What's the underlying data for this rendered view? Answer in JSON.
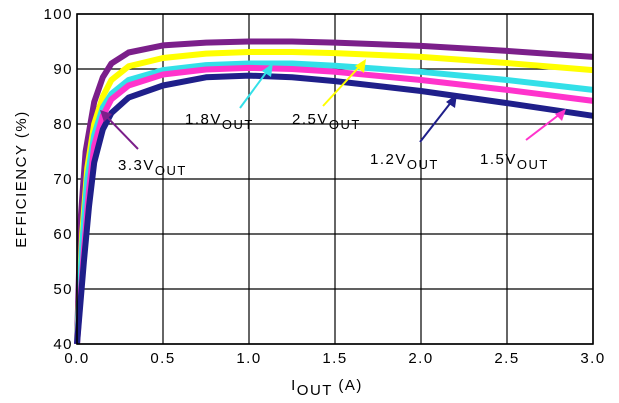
{
  "chart_data": {
    "type": "line",
    "xlabel": {
      "main": "I",
      "sub": "OUT",
      "unit": " (A)"
    },
    "ylabel": "EFFICIENCY (%)",
    "xlim": [
      0,
      3.0
    ],
    "ylim": [
      40,
      100
    ],
    "xticks": [
      "0.0",
      "0.5",
      "1.0",
      "1.5",
      "2.0",
      "2.5",
      "3.0"
    ],
    "yticks": [
      "40",
      "50",
      "60",
      "70",
      "80",
      "90",
      "100"
    ],
    "grid": true,
    "series": [
      {
        "name": "3.3VOUT",
        "label_main": "3.3V",
        "label_sub": "OUT",
        "color": "#7b1f8a",
        "points": [
          [
            0.0,
            40
          ],
          [
            0.02,
            62
          ],
          [
            0.05,
            75
          ],
          [
            0.1,
            84
          ],
          [
            0.15,
            88.5
          ],
          [
            0.2,
            91
          ],
          [
            0.3,
            93
          ],
          [
            0.5,
            94.3
          ],
          [
            0.75,
            94.8
          ],
          [
            1.0,
            95
          ],
          [
            1.25,
            95
          ],
          [
            1.5,
            94.8
          ],
          [
            2.0,
            94.2
          ],
          [
            2.5,
            93.3
          ],
          [
            3.0,
            92.2
          ]
        ]
      },
      {
        "name": "2.5VOUT",
        "label_main": "2.5V",
        "label_sub": "OUT",
        "color": "#ffff00",
        "points": [
          [
            0.0,
            40
          ],
          [
            0.03,
            60
          ],
          [
            0.06,
            72
          ],
          [
            0.1,
            80
          ],
          [
            0.15,
            85
          ],
          [
            0.2,
            88
          ],
          [
            0.3,
            90.5
          ],
          [
            0.5,
            92
          ],
          [
            0.75,
            92.8
          ],
          [
            1.0,
            93.1
          ],
          [
            1.25,
            93.1
          ],
          [
            1.5,
            92.9
          ],
          [
            2.0,
            92.2
          ],
          [
            2.5,
            91.1
          ],
          [
            3.0,
            89.8
          ]
        ]
      },
      {
        "name": "1.8VOUT",
        "label_main": "1.8V",
        "label_sub": "OUT",
        "color": "#33e0e8",
        "points": [
          [
            0.0,
            40
          ],
          [
            0.03,
            58
          ],
          [
            0.06,
            70
          ],
          [
            0.1,
            78
          ],
          [
            0.15,
            83
          ],
          [
            0.2,
            85.5
          ],
          [
            0.3,
            88
          ],
          [
            0.5,
            89.8
          ],
          [
            0.75,
            90.7
          ],
          [
            1.0,
            91
          ],
          [
            1.25,
            91
          ],
          [
            1.5,
            90.6
          ],
          [
            2.0,
            89.5
          ],
          [
            2.5,
            88
          ],
          [
            3.0,
            86.2
          ]
        ]
      },
      {
        "name": "1.5VOUT",
        "label_main": "1.5V",
        "label_sub": "OUT",
        "color": "#ff33cc",
        "points": [
          [
            0.0,
            40
          ],
          [
            0.04,
            57
          ],
          [
            0.07,
            68
          ],
          [
            0.1,
            76
          ],
          [
            0.15,
            81.5
          ],
          [
            0.2,
            84.5
          ],
          [
            0.3,
            87
          ],
          [
            0.5,
            89
          ],
          [
            0.75,
            89.9
          ],
          [
            1.0,
            90.2
          ],
          [
            1.25,
            90
          ],
          [
            1.5,
            89.5
          ],
          [
            2.0,
            88
          ],
          [
            2.5,
            86.2
          ],
          [
            3.0,
            84.2
          ]
        ]
      },
      {
        "name": "1.2VOUT",
        "label_main": "1.2V",
        "label_sub": "OUT",
        "color": "#1f1f8a",
        "points": [
          [
            0.0,
            40
          ],
          [
            0.04,
            55
          ],
          [
            0.07,
            65
          ],
          [
            0.1,
            73
          ],
          [
            0.15,
            79
          ],
          [
            0.2,
            82
          ],
          [
            0.3,
            84.8
          ],
          [
            0.5,
            87
          ],
          [
            0.75,
            88.5
          ],
          [
            1.0,
            88.8
          ],
          [
            1.25,
            88.5
          ],
          [
            1.5,
            87.8
          ],
          [
            2.0,
            86
          ],
          [
            2.5,
            83.8
          ],
          [
            3.0,
            81.5
          ]
        ]
      }
    ]
  }
}
